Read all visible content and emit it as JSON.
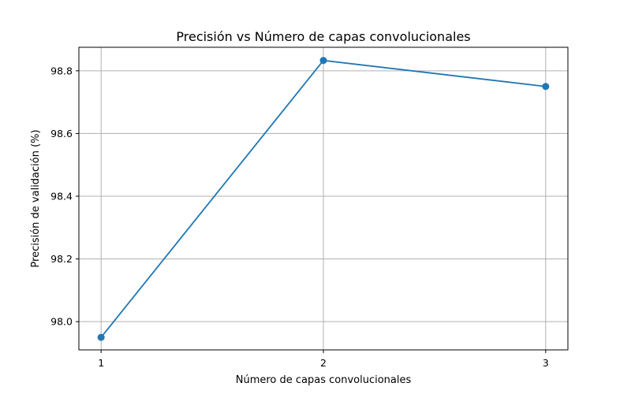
{
  "chart_data": {
    "type": "line",
    "title": "Precisión vs Número de capas convolucionales",
    "xlabel": "Número de capas convolucionales",
    "ylabel": "Precisión de validación (%)",
    "x": [
      1,
      2,
      3
    ],
    "xticks": [
      "1",
      "2",
      "3"
    ],
    "yticks": [
      "98.0",
      "98.2",
      "98.4",
      "98.6",
      "98.8"
    ],
    "series": [
      {
        "values": [
          97.95,
          98.833,
          98.75
        ]
      }
    ],
    "xlim": [
      0.9,
      3.1
    ],
    "ylim": [
      97.91,
      98.875
    ],
    "grid": true,
    "line_color": "#1f77b4",
    "marker": "circle"
  }
}
